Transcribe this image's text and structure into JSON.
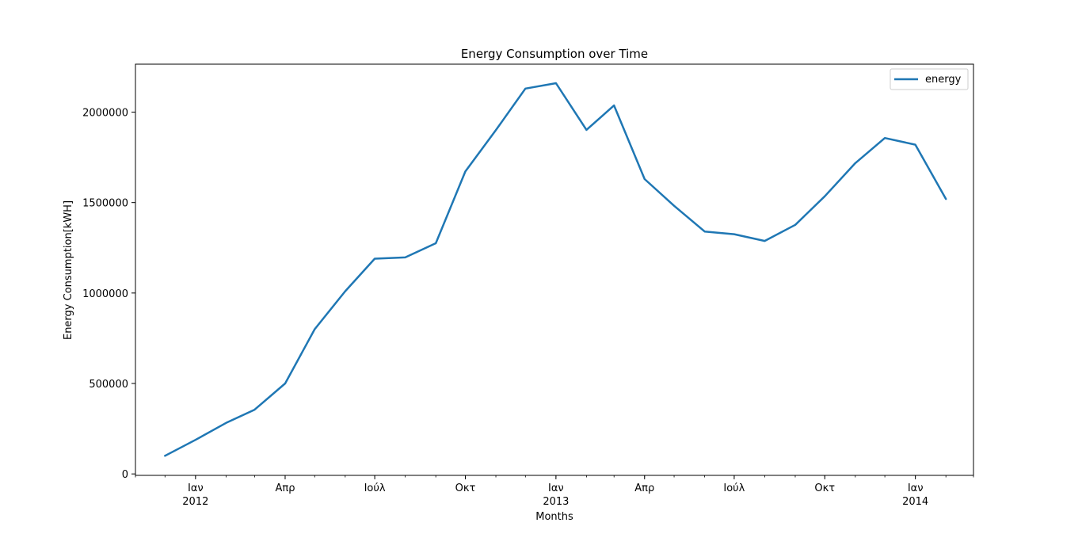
{
  "chart_data": {
    "type": "line",
    "title": "Energy Consumption over Time",
    "xlabel": "Months",
    "ylabel": "Energy Consumption[kWH]",
    "legend_position": "top-right",
    "grid": false,
    "x_range": [
      "2011-11-01",
      "2014-03-01"
    ],
    "ylim": [
      -8000,
      2265000
    ],
    "y_ticks": [
      0,
      500000,
      1000000,
      1500000,
      2000000
    ],
    "y_tick_labels": [
      "0",
      "500000",
      "1000000",
      "1500000",
      "2000000"
    ],
    "x_major_ticks": [
      {
        "date": "2012-01-01",
        "label": "Ιαν",
        "year": "2012"
      },
      {
        "date": "2012-04-01",
        "label": "Απρ",
        "year": ""
      },
      {
        "date": "2012-07-01",
        "label": "Ιούλ",
        "year": ""
      },
      {
        "date": "2012-10-01",
        "label": "Οκτ",
        "year": ""
      },
      {
        "date": "2013-01-01",
        "label": "Ιαν",
        "year": "2013"
      },
      {
        "date": "2013-04-01",
        "label": "Απρ",
        "year": ""
      },
      {
        "date": "2013-07-01",
        "label": "Ιούλ",
        "year": ""
      },
      {
        "date": "2013-10-01",
        "label": "Οκτ",
        "year": ""
      },
      {
        "date": "2014-01-01",
        "label": "Ιαν",
        "year": "2014"
      }
    ],
    "series": [
      {
        "name": "energy",
        "color": "#1f77b4",
        "x": [
          "2011-12-01",
          "2012-01-01",
          "2012-02-01",
          "2012-03-01",
          "2012-04-01",
          "2012-05-01",
          "2012-06-01",
          "2012-07-01",
          "2012-08-01",
          "2012-09-01",
          "2012-10-01",
          "2012-11-01",
          "2012-12-01",
          "2013-01-01",
          "2013-02-01",
          "2013-03-01",
          "2013-04-01",
          "2013-05-01",
          "2013-06-01",
          "2013-07-01",
          "2013-08-01",
          "2013-09-01",
          "2013-10-01",
          "2013-11-01",
          "2013-12-01",
          "2014-01-01",
          "2014-02-01"
        ],
        "values": [
          100000,
          188000,
          282000,
          355000,
          500000,
          800000,
          1010000,
          1190000,
          1197000,
          1275000,
          1672000,
          1900000,
          2130000,
          2160000,
          1902000,
          2037000,
          1630000,
          1482000,
          1340000,
          1325000,
          1288000,
          1377000,
          1535000,
          1718000,
          1857000,
          1820000,
          1520000
        ]
      }
    ]
  }
}
